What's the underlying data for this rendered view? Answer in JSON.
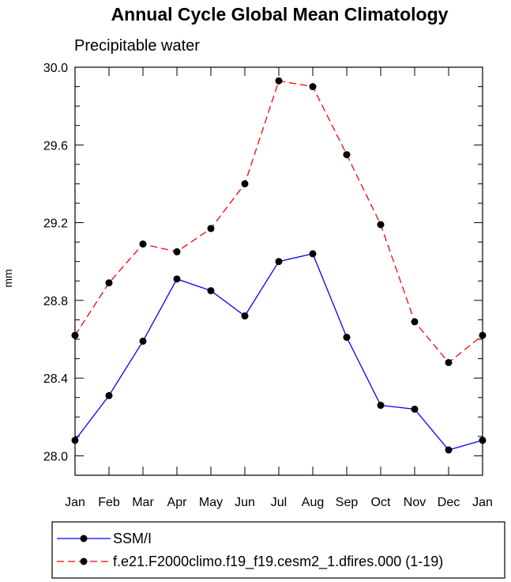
{
  "chart_data": {
    "type": "line",
    "title": "Annual Cycle Global Mean Climatology",
    "subtitle": "Precipitable water",
    "ylabel": "mm",
    "xlabel": "",
    "ylim": [
      27.9,
      30.0
    ],
    "yticks": [
      "28.0",
      "28.4",
      "28.8",
      "29.2",
      "29.6",
      "30.0"
    ],
    "categories": [
      "Jan",
      "Feb",
      "Mar",
      "Apr",
      "May",
      "Jun",
      "Jul",
      "Aug",
      "Sep",
      "Oct",
      "Nov",
      "Dec",
      "Jan"
    ],
    "series": [
      {
        "name": "SSM/I",
        "color": "#0000ff",
        "dash": "solid",
        "values": [
          28.08,
          28.31,
          28.59,
          28.91,
          28.85,
          28.72,
          29.0,
          29.04,
          28.61,
          28.26,
          28.24,
          28.03,
          28.08
        ]
      },
      {
        "name": "f.e21.F2000climo.f19_f19.cesm2_1.dfires.000 (1-19)",
        "color": "#ff0000",
        "dash": "dashed",
        "values": [
          28.62,
          28.89,
          29.09,
          29.05,
          29.17,
          29.4,
          29.93,
          29.9,
          29.55,
          29.19,
          28.69,
          28.48,
          28.62
        ]
      }
    ]
  }
}
